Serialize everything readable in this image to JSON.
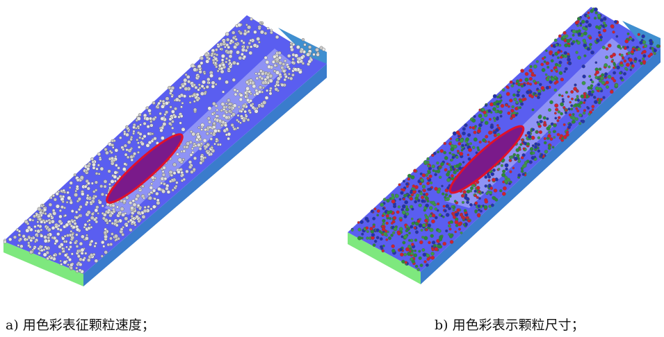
{
  "figure": {
    "panels": [
      {
        "caption": "a) 用色彩表征颗粒速度；"
      },
      {
        "caption": "b) 用色彩表示颗粒尺寸；"
      }
    ]
  }
}
